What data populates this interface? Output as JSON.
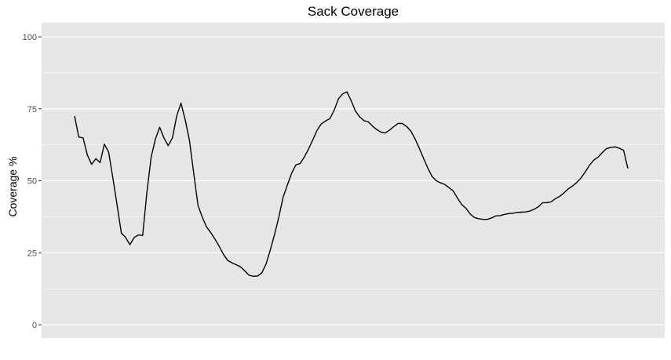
{
  "chart_data": {
    "type": "line",
    "title": "Sack Coverage",
    "xlabel": "",
    "ylabel": "Coverage %",
    "ylim": [
      0,
      100
    ],
    "yticks": [
      0,
      25,
      50,
      75,
      100
    ],
    "grid": true,
    "colors": {
      "panel": "#e6e6e6",
      "grid": "#ffffff",
      "line": "#000000",
      "tick": "#4d4d4d"
    },
    "series": [
      {
        "values": [
          72.5,
          65.2,
          64.9,
          59.0,
          55.7,
          57.7,
          56.3,
          62.7,
          60.0,
          51.0,
          41.5,
          31.8,
          30.3,
          27.8,
          30.3,
          31.2,
          31.0,
          46.0,
          58.3,
          64.5,
          68.6,
          64.9,
          62.2,
          64.9,
          72.5,
          77.0,
          71.2,
          64.0,
          52.6,
          41.5,
          37.4,
          34.0,
          32.0,
          29.7,
          27.2,
          24.4,
          22.3,
          21.5,
          20.8,
          20.1,
          18.7,
          17.2,
          16.8,
          16.9,
          18.0,
          21.1,
          26.0,
          31.4,
          37.4,
          44.3,
          48.5,
          52.6,
          55.5,
          56.0,
          58.3,
          61.1,
          64.3,
          67.6,
          69.8,
          70.8,
          71.6,
          74.5,
          78.5,
          80.2,
          80.9,
          77.8,
          74.2,
          72.2,
          70.9,
          70.5,
          69.0,
          67.8,
          66.9,
          66.6,
          67.6,
          68.8,
          69.9,
          69.9,
          68.9,
          67.3,
          64.6,
          61.3,
          57.8,
          54.4,
          51.5,
          50.0,
          49.3,
          48.7,
          47.6,
          46.4,
          43.9,
          41.7,
          40.4,
          38.4,
          37.2,
          36.8,
          36.6,
          36.6,
          37.1,
          37.8,
          37.9,
          38.3,
          38.6,
          38.7,
          39.0,
          39.1,
          39.2,
          39.5,
          40.1,
          41.0,
          42.4,
          42.4,
          42.7,
          43.8,
          44.6,
          45.8,
          47.2,
          48.2,
          49.4,
          51.0,
          53.1,
          55.4,
          57.2,
          58.2,
          59.8,
          61.2,
          61.6,
          61.8,
          61.3,
          60.6,
          54.3
        ]
      }
    ]
  }
}
